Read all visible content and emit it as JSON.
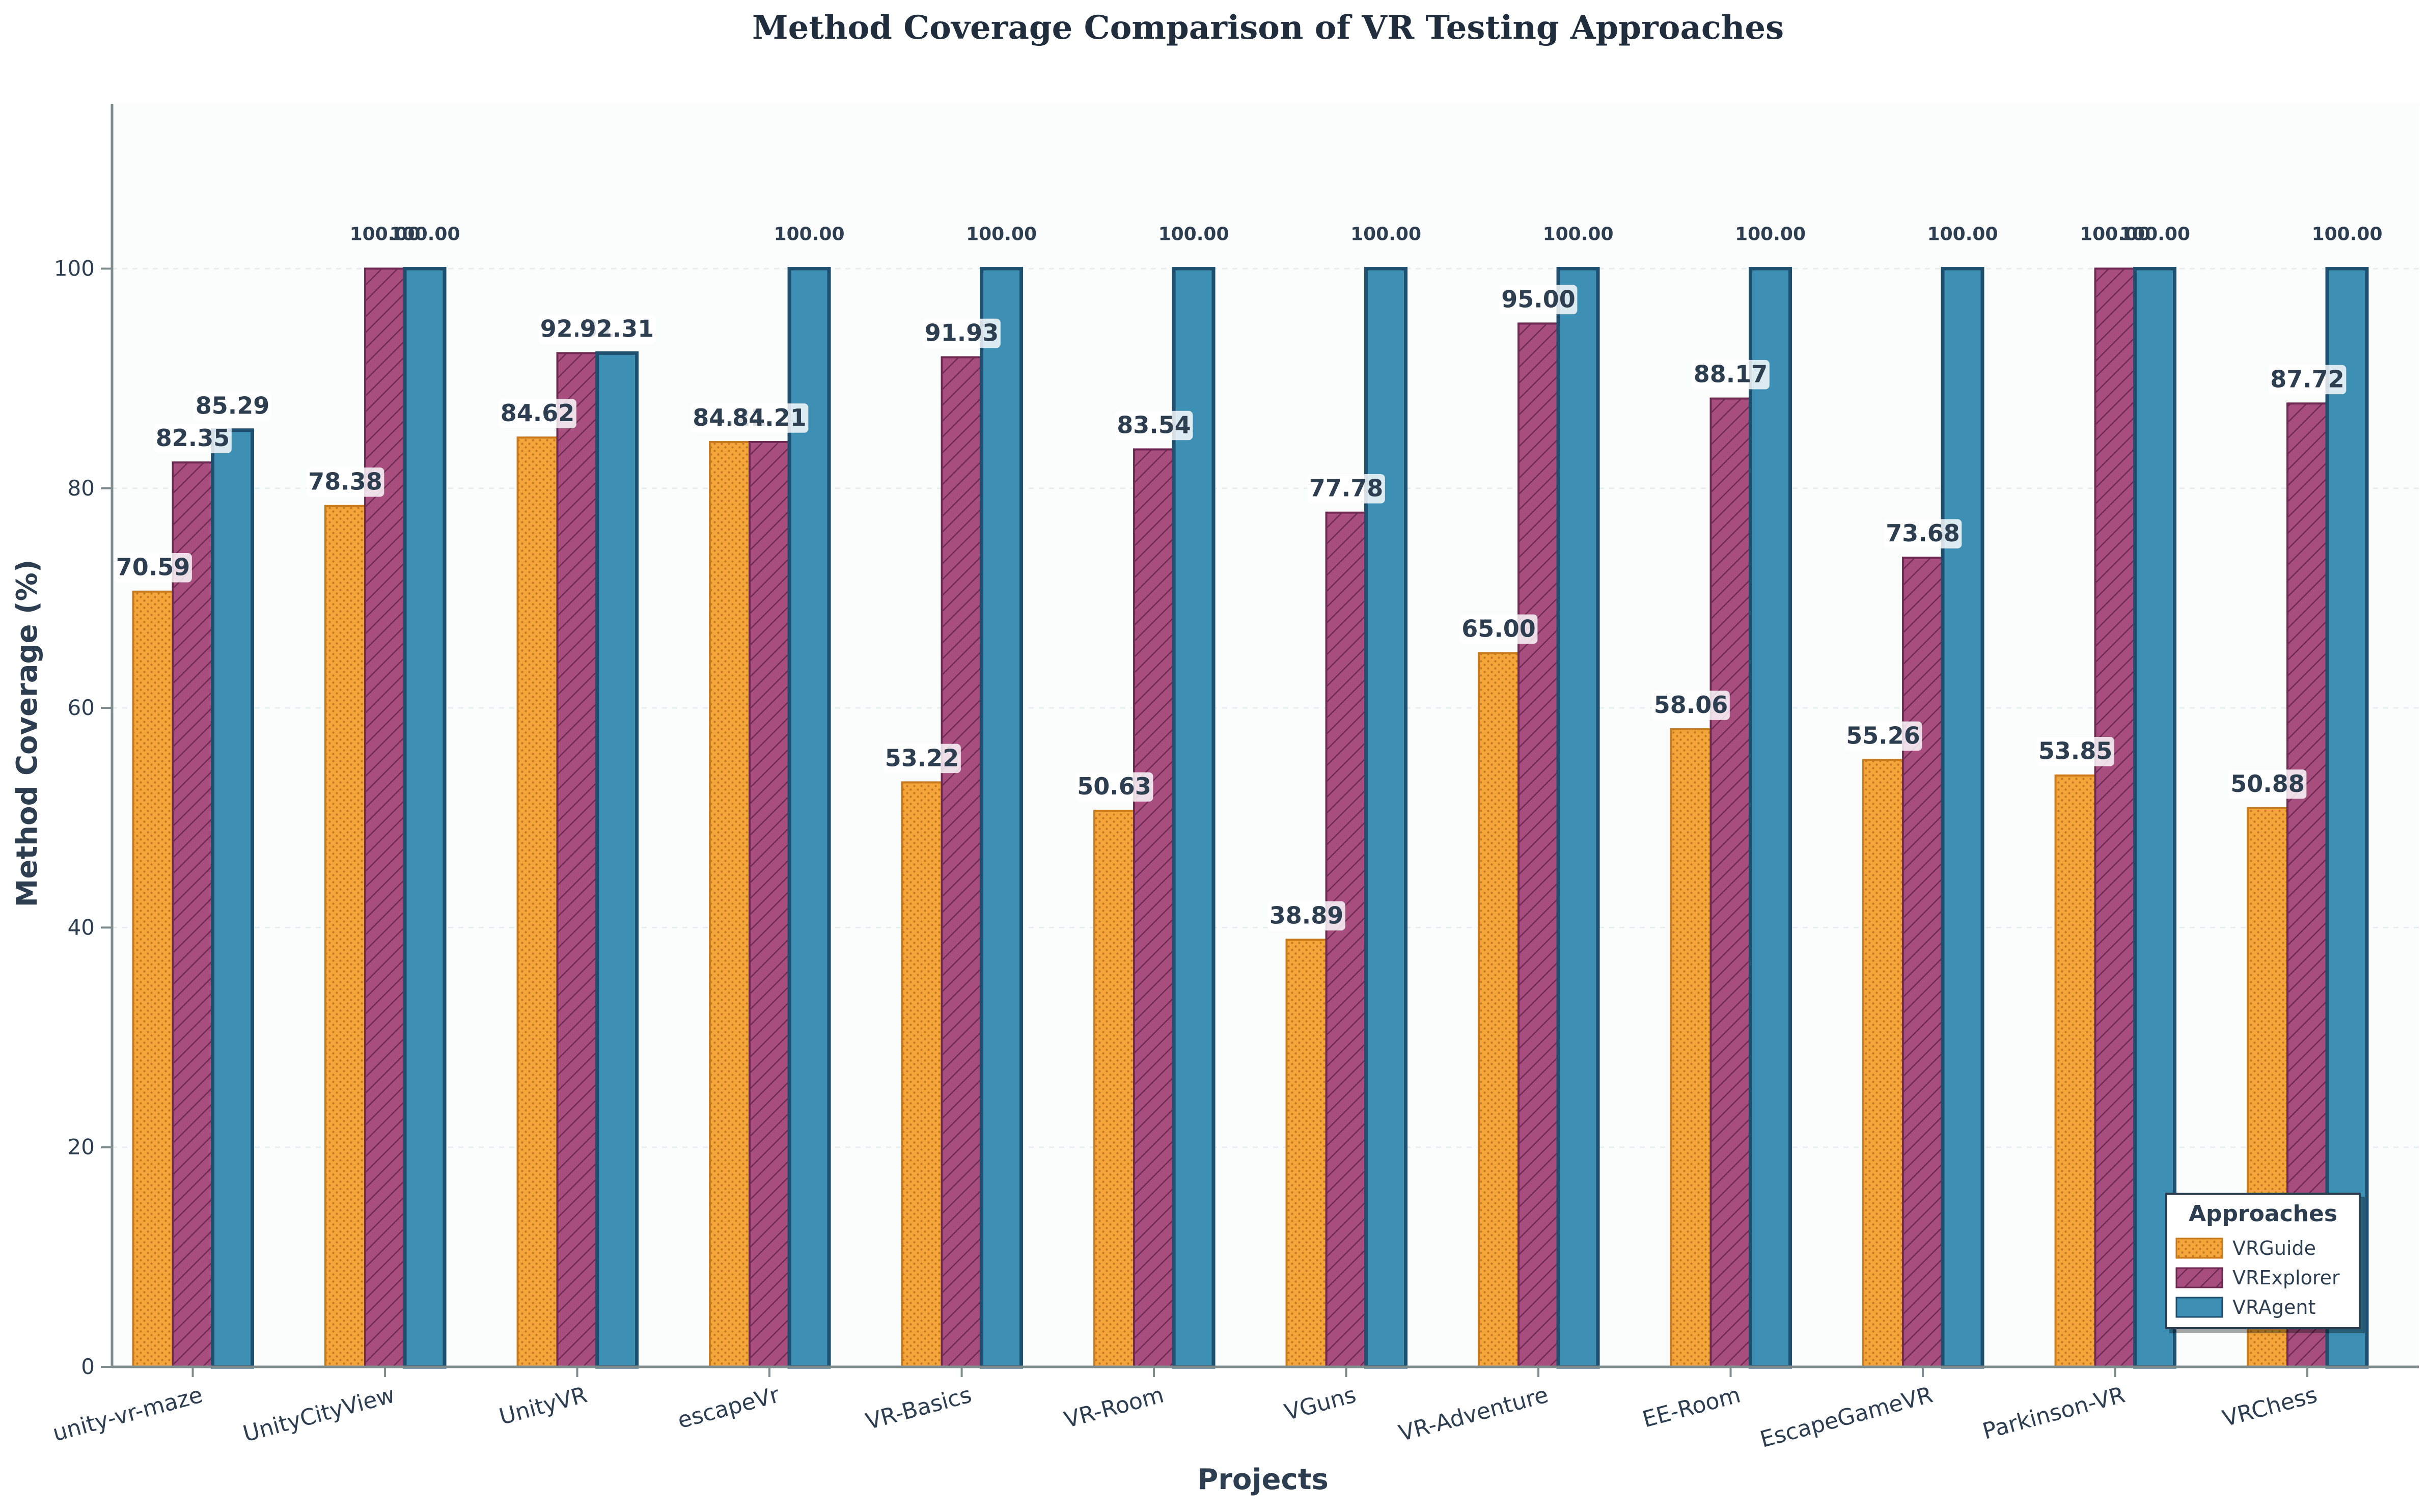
{
  "chart_data": {
    "type": "bar",
    "title": "Method Coverage Comparison of VR Testing Approaches",
    "xlabel": "Projects",
    "ylabel": "Method Coverage (%)",
    "ylim": [
      0,
      115
    ],
    "yticks": [
      0,
      20,
      40,
      60,
      80,
      100
    ],
    "grid": true,
    "legend_title": "Approaches",
    "legend_position": "lower-right",
    "categories": [
      "unity-vr-maze",
      "UnityCityView",
      "UnityVR",
      "escapeVr",
      "VR-Basics",
      "VR-Room",
      "VGuns",
      "VR-Adventure",
      "EE-Room",
      "EscapeGameVR",
      "Parkinson-VR",
      "VRChess"
    ],
    "series": [
      {
        "name": "VRGuide",
        "color": "#f4a63a",
        "edge": "#c87a1c",
        "pattern": "dots",
        "values": [
          70.59,
          78.38,
          84.62,
          84.21,
          53.22,
          50.63,
          38.89,
          65.0,
          58.06,
          55.26,
          53.85,
          50.88
        ]
      },
      {
        "name": "VRExplorer",
        "color": "#a84e7f",
        "edge": "#6e2a52",
        "pattern": "hatch",
        "values": [
          82.35,
          100.0,
          92.31,
          84.21,
          91.93,
          83.54,
          77.78,
          95.0,
          88.17,
          73.68,
          100.0,
          87.72
        ]
      },
      {
        "name": "VRAgent",
        "color": "#3e8fb4",
        "edge": "#1f4f6e",
        "pattern": "solid",
        "values": [
          85.29,
          100.0,
          92.31,
          100.0,
          100.0,
          100.0,
          100.0,
          100.0,
          100.0,
          100.0,
          100.0,
          100.0
        ]
      }
    ]
  }
}
